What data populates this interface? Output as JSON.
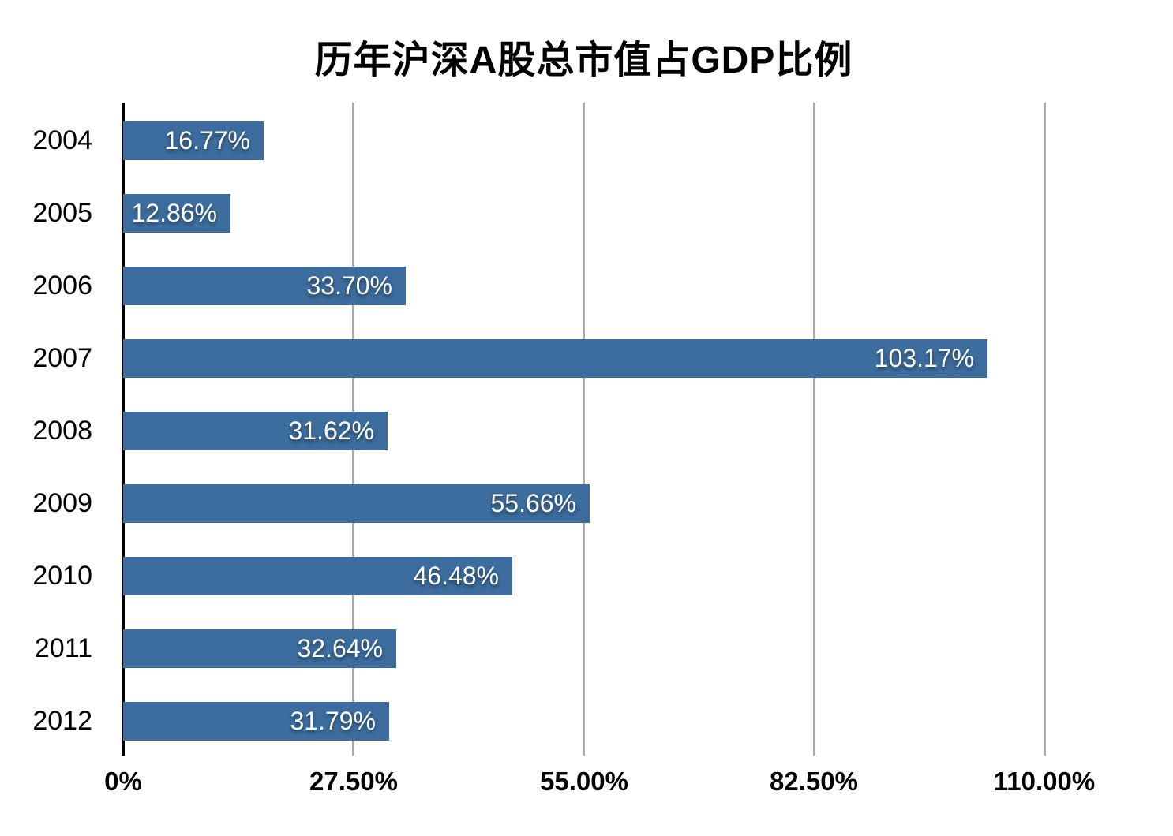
{
  "chart_data": {
    "type": "bar",
    "orientation": "horizontal",
    "title": "历年沪深A股总市值占GDP比例",
    "xlabel": "",
    "ylabel": "",
    "categories": [
      "2004",
      "2005",
      "2006",
      "2007",
      "2008",
      "2009",
      "2010",
      "2011",
      "2012"
    ],
    "values": [
      16.77,
      12.86,
      33.7,
      103.17,
      31.62,
      55.66,
      46.48,
      32.64,
      31.79
    ],
    "value_labels": [
      "16.77%",
      "12.86%",
      "33.70%",
      "103.17%",
      "31.62%",
      "55.66%",
      "46.48%",
      "32.64%",
      "31.79%"
    ],
    "xlim": [
      0,
      110
    ],
    "x_ticks": [
      {
        "value": 0,
        "label": "0%"
      },
      {
        "value": 27.5,
        "label": "27.50%"
      },
      {
        "value": 55,
        "label": "55.00%"
      },
      {
        "value": 82.5,
        "label": "82.50%"
      },
      {
        "value": 110,
        "label": "110.00%"
      }
    ],
    "grid": "vertical-gridlines-behind-bars",
    "legend": "none",
    "colors": {
      "bar": "#3C6D9E",
      "gridline": "#ABABAB",
      "axis": "#000000",
      "value_label": "#FFFFFF",
      "title": "#000000",
      "background": "#FFFFFF"
    }
  }
}
